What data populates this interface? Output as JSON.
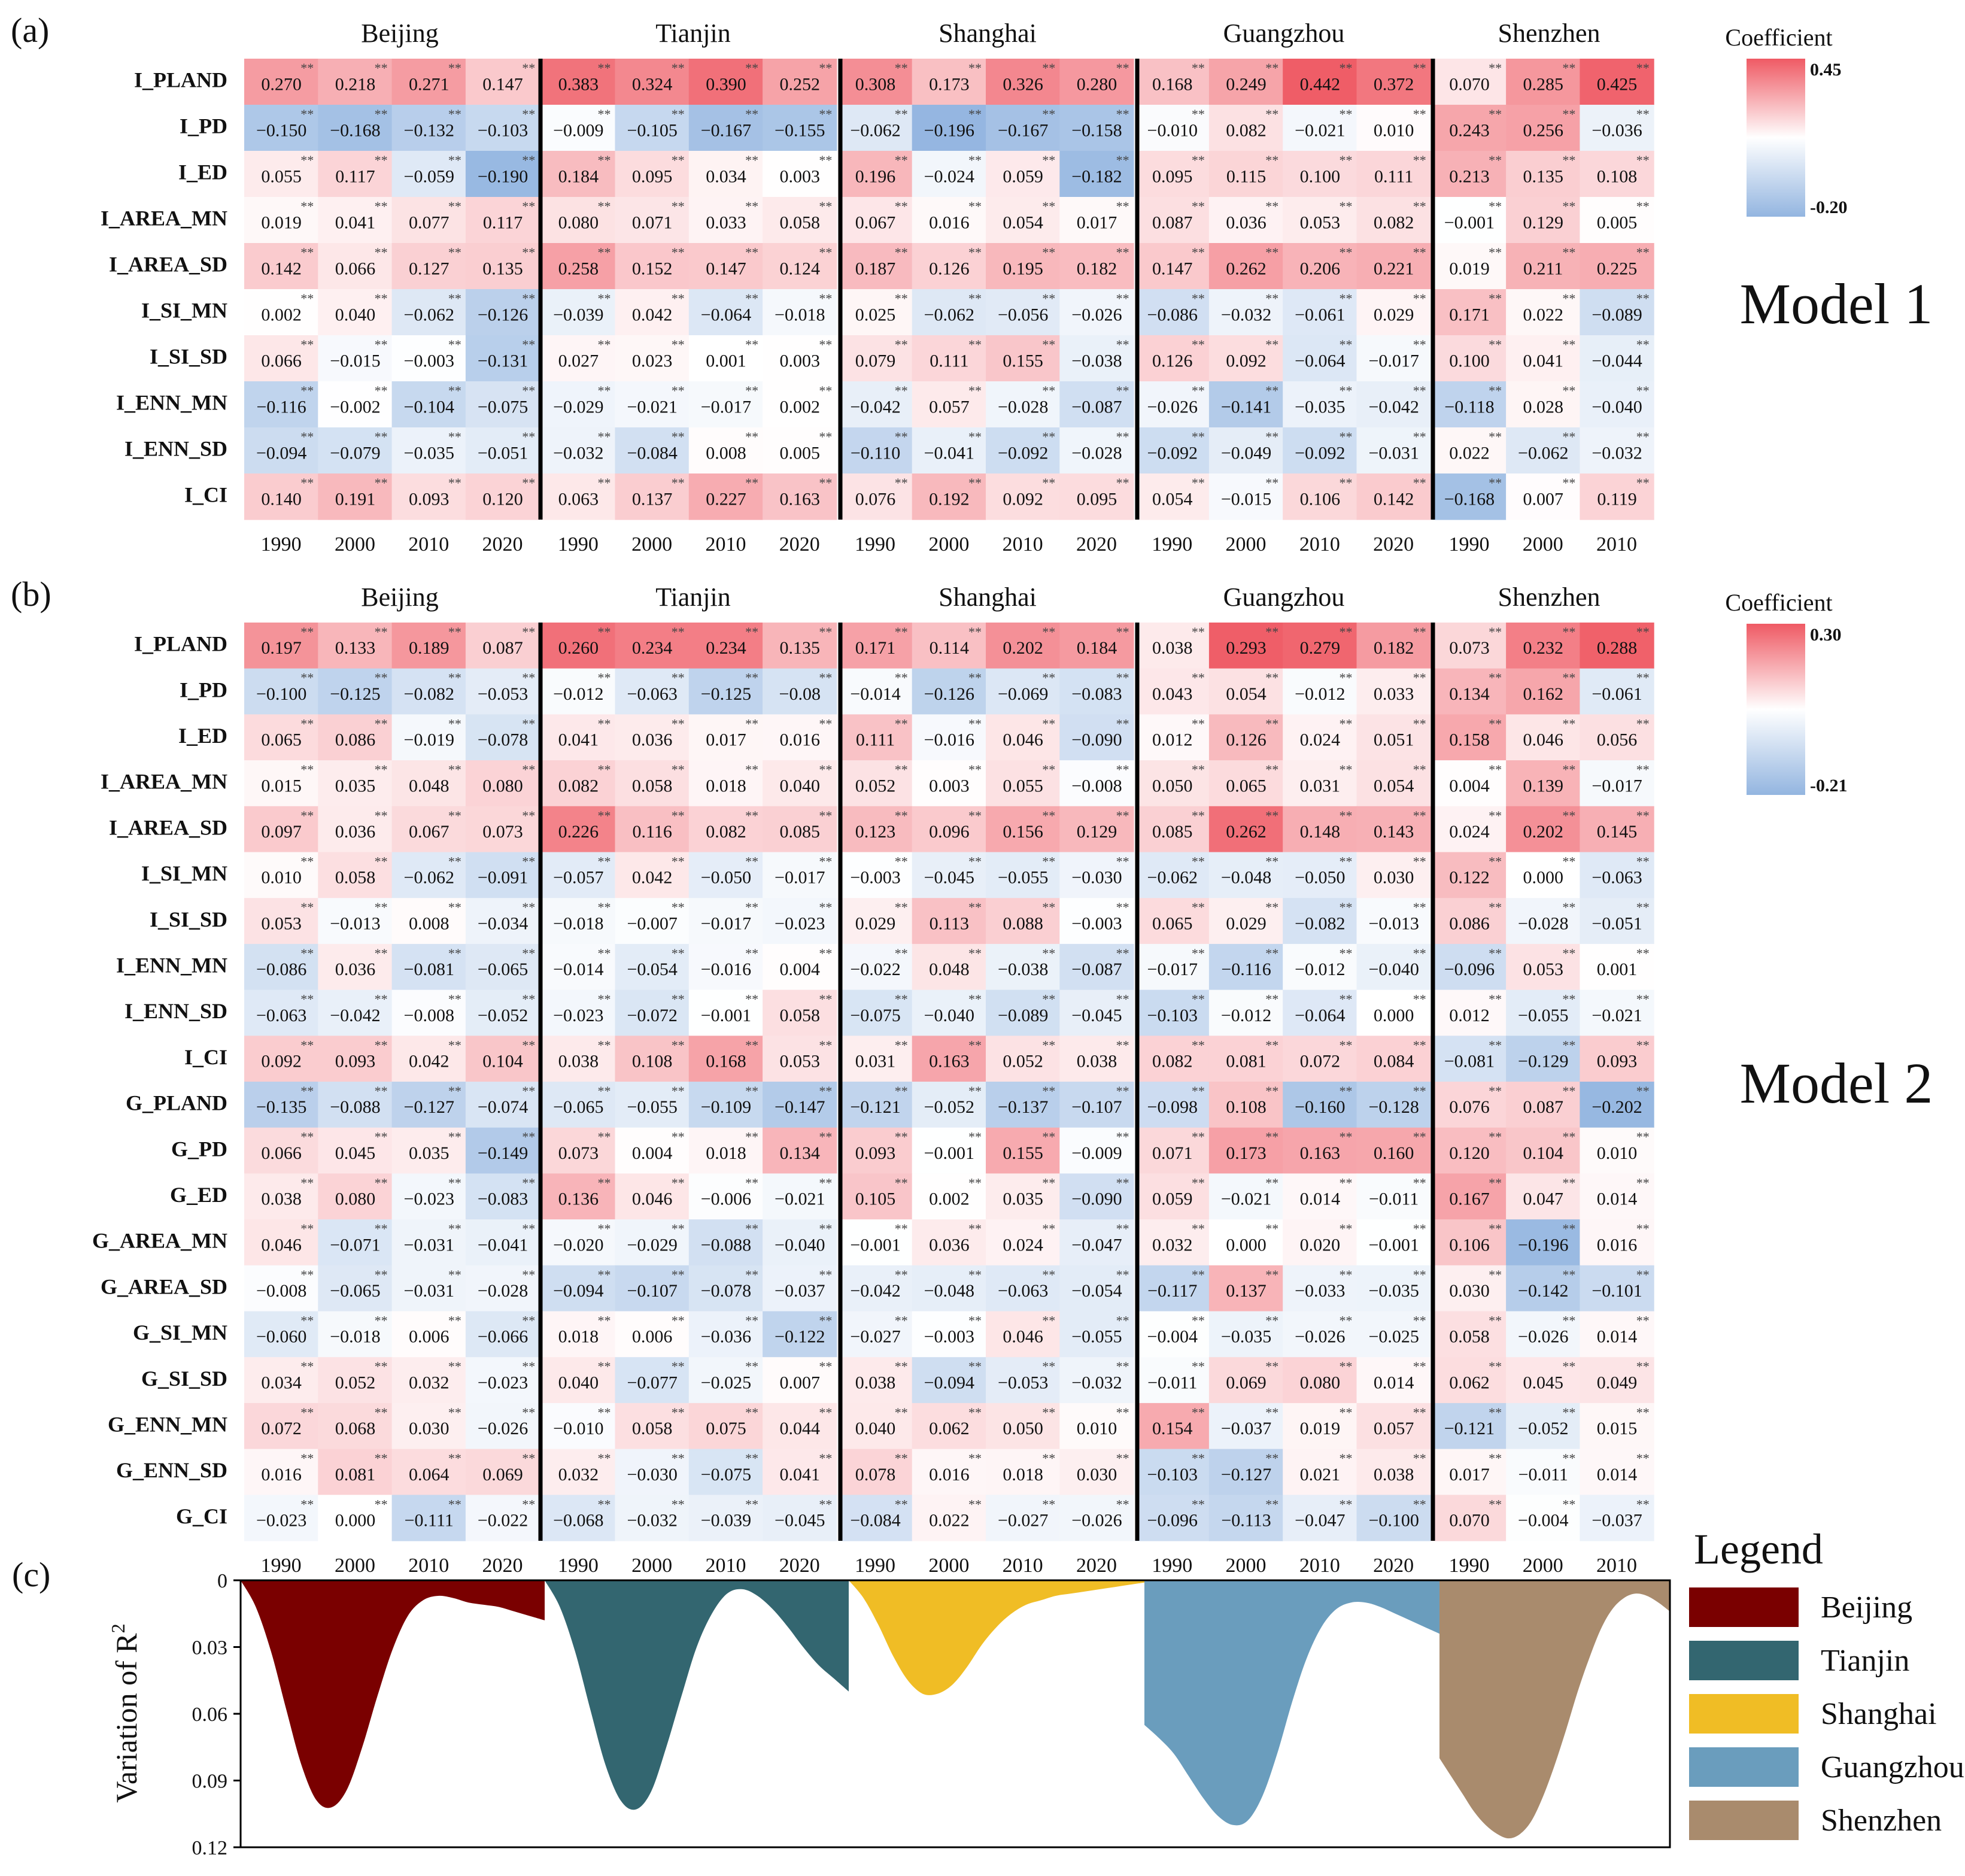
{
  "chart_data": [
    {
      "type": "heatmap",
      "panel_label": "(a)",
      "model_label": "Model 1",
      "cities": [
        "Beijing",
        "Tianjin",
        "Shanghai",
        "Guangzhou",
        "Shenzhen"
      ],
      "years": [
        [
          "1990",
          "2000",
          "2010",
          "2020"
        ],
        [
          "1990",
          "2000",
          "2010",
          "2020"
        ],
        [
          "1990",
          "2000",
          "2010",
          "2020"
        ],
        [
          "1990",
          "2000",
          "2010",
          "2020"
        ],
        [
          "1990",
          "2000",
          "2010"
        ]
      ],
      "rows": [
        "I_PLAND",
        "I_PD",
        "I_ED",
        "I_AREA_MN",
        "I_AREA_SD",
        "I_SI_MN",
        "I_SI_SD",
        "I_ENN_MN",
        "I_ENN_SD",
        "I_CI"
      ],
      "values": [
        [
          "0.270",
          "0.218",
          "0.271",
          "0.147",
          "0.383",
          "0.324",
          "0.390",
          "0.252",
          "0.308",
          "0.173",
          "0.326",
          "0.280",
          "0.168",
          "0.249",
          "0.442",
          "0.372",
          "0.070",
          "0.285",
          "0.425"
        ],
        [
          "−0.150",
          "−0.168",
          "−0.132",
          "−0.103",
          "−0.009",
          "−0.105",
          "−0.167",
          "−0.155",
          "−0.062",
          "−0.196",
          "−0.167",
          "−0.158",
          "−0.010",
          "0.082",
          "−0.021",
          "0.010",
          "0.243",
          "0.256",
          "−0.036"
        ],
        [
          "0.055",
          "0.117",
          "−0.059",
          "−0.190",
          "0.184",
          "0.095",
          "0.034",
          "0.003",
          "0.196",
          "−0.024",
          "0.059",
          "−0.182",
          "0.095",
          "0.115",
          "0.100",
          "0.111",
          "0.213",
          "0.135",
          "0.108"
        ],
        [
          "0.019",
          "0.041",
          "0.077",
          "0.117",
          "0.080",
          "0.071",
          "0.033",
          "0.058",
          "0.067",
          "0.016",
          "0.054",
          "0.017",
          "0.087",
          "0.036",
          "0.053",
          "0.082",
          "−0.001",
          "0.129",
          "0.005"
        ],
        [
          "0.142",
          "0.066",
          "0.127",
          "0.135",
          "0.258",
          "0.152",
          "0.147",
          "0.124",
          "0.187",
          "0.126",
          "0.195",
          "0.182",
          "0.147",
          "0.262",
          "0.206",
          "0.221",
          "0.019",
          "0.211",
          "0.225"
        ],
        [
          "0.002",
          "0.040",
          "−0.062",
          "−0.126",
          "−0.039",
          "0.042",
          "−0.064",
          "−0.018",
          "0.025",
          "−0.062",
          "−0.056",
          "−0.026",
          "−0.086",
          "−0.032",
          "−0.061",
          "0.029",
          "0.171",
          "0.022",
          "−0.089"
        ],
        [
          "0.066",
          "−0.015",
          "−0.003",
          "−0.131",
          "0.027",
          "0.023",
          "0.001",
          "0.003",
          "0.079",
          "0.111",
          "0.155",
          "−0.038",
          "0.126",
          "0.092",
          "−0.064",
          "−0.017",
          "0.100",
          "0.041",
          "−0.044"
        ],
        [
          "−0.116",
          "−0.002",
          "−0.104",
          "−0.075",
          "−0.029",
          "−0.021",
          "−0.017",
          "0.002",
          "−0.042",
          "0.057",
          "−0.028",
          "−0.087",
          "−0.026",
          "−0.141",
          "−0.035",
          "−0.042",
          "−0.118",
          "0.028",
          "−0.040"
        ],
        [
          "−0.094",
          "−0.079",
          "−0.035",
          "−0.051",
          "−0.032",
          "−0.084",
          "0.008",
          "0.005",
          "−0.110",
          "−0.041",
          "−0.092",
          "−0.028",
          "−0.092",
          "−0.049",
          "−0.092",
          "−0.031",
          "0.022",
          "−0.062",
          "−0.032"
        ],
        [
          "0.140",
          "0.191",
          "0.093",
          "0.120",
          "0.063",
          "0.137",
          "0.227",
          "0.163",
          "0.076",
          "0.192",
          "0.092",
          "0.095",
          "0.054",
          "−0.015",
          "0.106",
          "0.142",
          "−0.168",
          "0.007",
          "0.119"
        ]
      ],
      "colorbar": {
        "title": "Coefficient",
        "max": "0.45",
        "min": "-0.20"
      },
      "significance_mark": "**"
    },
    {
      "type": "heatmap",
      "panel_label": "(b)",
      "model_label": "Model 2",
      "cities": [
        "Beijing",
        "Tianjin",
        "Shanghai",
        "Guangzhou",
        "Shenzhen"
      ],
      "years": [
        [
          "1990",
          "2000",
          "2010",
          "2020"
        ],
        [
          "1990",
          "2000",
          "2010",
          "2020"
        ],
        [
          "1990",
          "2000",
          "2010",
          "2020"
        ],
        [
          "1990",
          "2000",
          "2010",
          "2020"
        ],
        [
          "1990",
          "2000",
          "2010"
        ]
      ],
      "rows": [
        "I_PLAND",
        "I_PD",
        "I_ED",
        "I_AREA_MN",
        "I_AREA_SD",
        "I_SI_MN",
        "I_SI_SD",
        "I_ENN_MN",
        "I_ENN_SD",
        "I_CI",
        "G_PLAND",
        "G_PD",
        "G_ED",
        "G_AREA_MN",
        "G_AREA_SD",
        "G_SI_MN",
        "G_SI_SD",
        "G_ENN_MN",
        "G_ENN_SD",
        "G_CI"
      ],
      "values": [
        [
          "0.197",
          "0.133",
          "0.189",
          "0.087",
          "0.260",
          "0.234",
          "0.234",
          "0.135",
          "0.171",
          "0.114",
          "0.202",
          "0.184",
          "0.038",
          "0.293",
          "0.279",
          "0.182",
          "0.073",
          "0.232",
          "0.288"
        ],
        [
          "−0.100",
          "−0.125",
          "−0.082",
          "−0.053",
          "−0.012",
          "−0.063",
          "−0.125",
          "−0.08",
          "−0.014",
          "−0.126",
          "−0.069",
          "−0.083",
          "0.043",
          "0.054",
          "−0.012",
          "0.033",
          "0.134",
          "0.162",
          "−0.061"
        ],
        [
          "0.065",
          "0.086",
          "−0.019",
          "−0.078",
          "0.041",
          "0.036",
          "0.017",
          "0.016",
          "0.111",
          "−0.016",
          "0.046",
          "−0.090",
          "0.012",
          "0.126",
          "0.024",
          "0.051",
          "0.158",
          "0.046",
          "0.056"
        ],
        [
          "0.015",
          "0.035",
          "0.048",
          "0.080",
          "0.082",
          "0.058",
          "0.018",
          "0.040",
          "0.052",
          "0.003",
          "0.055",
          "−0.008",
          "0.050",
          "0.065",
          "0.031",
          "0.054",
          "0.004",
          "0.139",
          "−0.017"
        ],
        [
          "0.097",
          "0.036",
          "0.067",
          "0.073",
          "0.226",
          "0.116",
          "0.082",
          "0.085",
          "0.123",
          "0.096",
          "0.156",
          "0.129",
          "0.085",
          "0.262",
          "0.148",
          "0.143",
          "0.024",
          "0.202",
          "0.145"
        ],
        [
          "0.010",
          "0.058",
          "−0.062",
          "−0.091",
          "−0.057",
          "0.042",
          "−0.050",
          "−0.017",
          "−0.003",
          "−0.045",
          "−0.055",
          "−0.030",
          "−0.062",
          "−0.048",
          "−0.050",
          "0.030",
          "0.122",
          "0.000",
          "−0.063"
        ],
        [
          "0.053",
          "−0.013",
          "0.008",
          "−0.034",
          "−0.018",
          "−0.007",
          "−0.017",
          "−0.023",
          "0.029",
          "0.113",
          "0.088",
          "−0.003",
          "0.065",
          "0.029",
          "−0.082",
          "−0.013",
          "0.086",
          "−0.028",
          "−0.051"
        ],
        [
          "−0.086",
          "0.036",
          "−0.081",
          "−0.065",
          "−0.014",
          "−0.054",
          "−0.016",
          "0.004",
          "−0.022",
          "0.048",
          "−0.038",
          "−0.087",
          "−0.017",
          "−0.116",
          "−0.012",
          "−0.040",
          "−0.096",
          "0.053",
          "0.001"
        ],
        [
          "−0.063",
          "−0.042",
          "−0.008",
          "−0.052",
          "−0.023",
          "−0.072",
          "−0.001",
          "0.058",
          "−0.075",
          "−0.040",
          "−0.089",
          "−0.045",
          "−0.103",
          "−0.012",
          "−0.064",
          "0.000",
          "0.012",
          "−0.055",
          "−0.021"
        ],
        [
          "0.092",
          "0.093",
          "0.042",
          "0.104",
          "0.038",
          "0.108",
          "0.168",
          "0.053",
          "0.031",
          "0.163",
          "0.052",
          "0.038",
          "0.082",
          "0.081",
          "0.072",
          "0.084",
          "−0.081",
          "−0.129",
          "0.093"
        ],
        [
          "−0.135",
          "−0.088",
          "−0.127",
          "−0.074",
          "−0.065",
          "−0.055",
          "−0.109",
          "−0.147",
          "−0.121",
          "−0.052",
          "−0.137",
          "−0.107",
          "−0.098",
          "0.108",
          "−0.160",
          "−0.128",
          "0.076",
          "0.087",
          "−0.202"
        ],
        [
          "0.066",
          "0.045",
          "0.035",
          "−0.149",
          "0.073",
          "0.004",
          "0.018",
          "0.134",
          "0.093",
          "−0.001",
          "0.155",
          "−0.009",
          "0.071",
          "0.173",
          "0.163",
          "0.160",
          "0.120",
          "0.104",
          "0.010"
        ],
        [
          "0.038",
          "0.080",
          "−0.023",
          "−0.083",
          "0.136",
          "0.046",
          "−0.006",
          "−0.021",
          "0.105",
          "0.002",
          "0.035",
          "−0.090",
          "0.059",
          "−0.021",
          "0.014",
          "−0.011",
          "0.167",
          "0.047",
          "0.014"
        ],
        [
          "0.046",
          "−0.071",
          "−0.031",
          "−0.041",
          "−0.020",
          "−0.029",
          "−0.088",
          "−0.040",
          "−0.001",
          "0.036",
          "0.024",
          "−0.047",
          "0.032",
          "0.000",
          "0.020",
          "−0.001",
          "0.106",
          "−0.196",
          "0.016"
        ],
        [
          "−0.008",
          "−0.065",
          "−0.031",
          "−0.028",
          "−0.094",
          "−0.107",
          "−0.078",
          "−0.037",
          "−0.042",
          "−0.048",
          "−0.063",
          "−0.054",
          "−0.117",
          "0.137",
          "−0.033",
          "−0.035",
          "0.030",
          "−0.142",
          "−0.101"
        ],
        [
          "−0.060",
          "−0.018",
          "0.006",
          "−0.066",
          "0.018",
          "0.006",
          "−0.036",
          "−0.122",
          "−0.027",
          "−0.003",
          "0.046",
          "−0.055",
          "−0.004",
          "−0.035",
          "−0.026",
          "−0.025",
          "0.058",
          "−0.026",
          "0.014"
        ],
        [
          "0.034",
          "0.052",
          "0.032",
          "−0.023",
          "0.040",
          "−0.077",
          "−0.025",
          "0.007",
          "0.038",
          "−0.094",
          "−0.053",
          "−0.032",
          "−0.011",
          "0.069",
          "0.080",
          "0.014",
          "0.062",
          "0.045",
          "0.049"
        ],
        [
          "0.072",
          "0.068",
          "0.030",
          "−0.026",
          "−0.010",
          "0.058",
          "0.075",
          "0.044",
          "0.040",
          "0.062",
          "0.050",
          "0.010",
          "0.154",
          "−0.037",
          "0.019",
          "0.057",
          "−0.121",
          "−0.052",
          "0.015"
        ],
        [
          "0.016",
          "0.081",
          "0.064",
          "0.069",
          "0.032",
          "−0.030",
          "−0.075",
          "0.041",
          "0.078",
          "0.016",
          "0.018",
          "0.030",
          "−0.103",
          "−0.127",
          "0.021",
          "0.038",
          "0.017",
          "−0.011",
          "0.014"
        ],
        [
          "−0.023",
          "0.000",
          "−0.111",
          "−0.022",
          "−0.068",
          "−0.032",
          "−0.039",
          "−0.045",
          "−0.084",
          "0.022",
          "−0.027",
          "−0.026",
          "−0.096",
          "−0.113",
          "−0.047",
          "−0.100",
          "0.070",
          "−0.004",
          "−0.037"
        ]
      ],
      "colorbar": {
        "title": "Coefficient",
        "max": "0.30",
        "min": "-0.21"
      },
      "significance_mark": "**"
    },
    {
      "type": "area",
      "panel_label": "(c)",
      "ylabel": "Variation of R",
      "ylabel_sup": "2",
      "yticks": [
        "0",
        "0.03",
        "0.06",
        "0.09",
        "0.12"
      ],
      "ylim": [
        0,
        0.12
      ],
      "y_inverted": true,
      "legend_title": "Legend",
      "legend_position": "right",
      "series": [
        {
          "name": "Beijing",
          "color": "#7a0000",
          "x": [
            0,
            0.05,
            0.1,
            0.15,
            0.2,
            0.25,
            0.3,
            0.35,
            0.4,
            0.45,
            0.5,
            0.55,
            0.6,
            0.65,
            0.7,
            0.75,
            0.8,
            0.85,
            0.9,
            0.95,
            1
          ],
          "y": [
            0,
            0.012,
            0.032,
            0.058,
            0.083,
            0.099,
            0.102,
            0.094,
            0.075,
            0.052,
            0.031,
            0.016,
            0.009,
            0.007,
            0.008,
            0.01,
            0.011,
            0.012,
            0.014,
            0.016,
            0.018
          ]
        },
        {
          "name": "Tianjin",
          "color": "#336670",
          "x": [
            0,
            0.05,
            0.1,
            0.15,
            0.2,
            0.25,
            0.3,
            0.35,
            0.4,
            0.45,
            0.5,
            0.55,
            0.6,
            0.65,
            0.7,
            0.75,
            0.8,
            0.85,
            0.9,
            0.95,
            1
          ],
          "y": [
            0,
            0.012,
            0.032,
            0.058,
            0.083,
            0.099,
            0.103,
            0.095,
            0.075,
            0.052,
            0.03,
            0.015,
            0.006,
            0.004,
            0.007,
            0.013,
            0.021,
            0.03,
            0.038,
            0.044,
            0.05
          ]
        },
        {
          "name": "Shanghai",
          "color": "#f0bd25",
          "x": [
            0,
            0.05,
            0.1,
            0.15,
            0.2,
            0.25,
            0.3,
            0.35,
            0.4,
            0.45,
            0.5,
            0.55,
            0.6,
            0.65,
            0.7,
            0.75,
            0.8,
            0.85,
            0.9,
            0.95,
            1
          ],
          "y": [
            0,
            0.008,
            0.02,
            0.034,
            0.045,
            0.051,
            0.051,
            0.047,
            0.039,
            0.029,
            0.021,
            0.015,
            0.011,
            0.009,
            0.007,
            0.006,
            0.005,
            0.004,
            0.003,
            0.002,
            0.001
          ]
        },
        {
          "name": "Guangzhou",
          "color": "#6a9dbd",
          "x": [
            0,
            0.05,
            0.1,
            0.15,
            0.2,
            0.25,
            0.3,
            0.35,
            0.4,
            0.45,
            0.5,
            0.55,
            0.6,
            0.65,
            0.7,
            0.75,
            0.8,
            0.85,
            0.9,
            0.95,
            1
          ],
          "y": [
            0.065,
            0.071,
            0.078,
            0.088,
            0.098,
            0.106,
            0.11,
            0.108,
            0.097,
            0.078,
            0.055,
            0.035,
            0.021,
            0.013,
            0.01,
            0.01,
            0.012,
            0.015,
            0.018,
            0.021,
            0.024
          ]
        },
        {
          "name": "Shenzhen",
          "color": "#a98b6d",
          "x": [
            0,
            0.05,
            0.1,
            0.15,
            0.2,
            0.25,
            0.3,
            0.35,
            0.4,
            0.45,
            0.5,
            0.55,
            0.6,
            0.65,
            0.7,
            0.75,
            0.8,
            0.85,
            0.9,
            0.95,
            1
          ],
          "y": [
            0.08,
            0.088,
            0.096,
            0.104,
            0.11,
            0.114,
            0.116,
            0.114,
            0.108,
            0.097,
            0.083,
            0.067,
            0.05,
            0.035,
            0.022,
            0.013,
            0.008,
            0.006,
            0.007,
            0.01,
            0.014
          ]
        }
      ]
    }
  ]
}
